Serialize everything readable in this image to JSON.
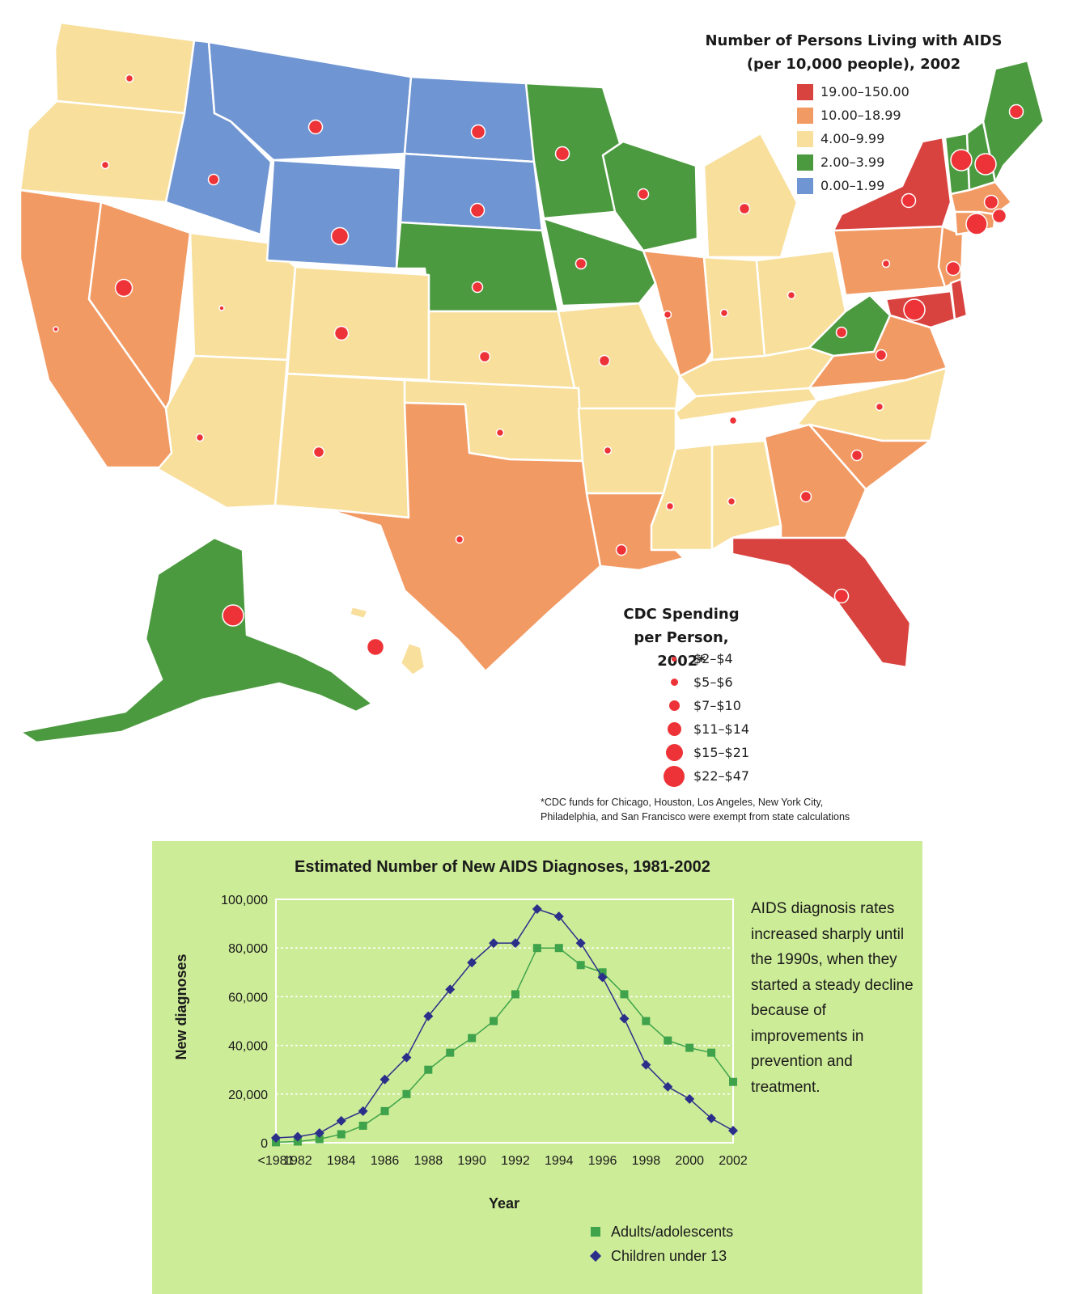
{
  "map": {
    "legend_title_line1": "Number of Persons Living with AIDS",
    "legend_title_line2": "(per 10,000 people), 2002",
    "categories": [
      {
        "label": "19.00–150.00",
        "color": "#d8433f"
      },
      {
        "label": "10.00–18.99",
        "color": "#f29a63"
      },
      {
        "label": "4.00–9.99",
        "color": "#f8df9c"
      },
      {
        "label": "2.00–3.99",
        "color": "#4c9a3f"
      },
      {
        "label": "0.00–1.99",
        "color": "#6f95d2"
      }
    ],
    "spending_title_line1": "CDC Spending",
    "spending_title_line2": "per Person, 2002*",
    "spending_levels": [
      {
        "label": "$2–$4",
        "level": 1
      },
      {
        "label": "$5–$6",
        "level": 2
      },
      {
        "label": "$7–$10",
        "level": 3
      },
      {
        "label": "$11–$14",
        "level": 4
      },
      {
        "label": "$15–$21",
        "level": 5
      },
      {
        "label": "$22–$47",
        "level": 6
      }
    ],
    "footnote_line1": "*CDC funds for Chicago, Houston, Los Angeles, New York City,",
    "footnote_line2": "Philadelphia, and San Francisco were exempt from state calculations",
    "bubble_color": "#ee3338"
  },
  "chart_data": {
    "type": "line",
    "title": "Estimated Number of New AIDS Diagnoses, 1981-2002",
    "xlabel": "Year",
    "ylabel": "New diagnoses",
    "x_tick_labels": [
      "<1981",
      "1982",
      "1984",
      "1986",
      "1988",
      "1990",
      "1992",
      "1994",
      "1996",
      "1998",
      "2000",
      "2002"
    ],
    "y_tick_labels": [
      "0",
      "20,000",
      "40,000",
      "60,000",
      "80,000",
      "100,000"
    ],
    "ylim": [
      0,
      100000
    ],
    "x": [
      "<1981",
      "1982",
      "1983",
      "1984",
      "1985",
      "1986",
      "1987",
      "1988",
      "1989",
      "1990",
      "1991",
      "1992",
      "1993",
      "1994",
      "1995",
      "1996",
      "1997",
      "1998",
      "1999",
      "2000",
      "2001",
      "2002"
    ],
    "series": [
      {
        "name": "Adults/adolescents",
        "marker": "square",
        "color": "#3ea34a",
        "values": [
          200,
          500,
          1500,
          3500,
          7000,
          13000,
          20000,
          30000,
          37000,
          43000,
          50000,
          61000,
          80000,
          80000,
          73000,
          70000,
          61000,
          50000,
          42000,
          39000,
          37000,
          25000
        ]
      },
      {
        "name": "Children under 13",
        "marker": "diamond",
        "color": "#2b2f8a",
        "values": [
          2000,
          2500,
          4000,
          9000,
          13000,
          26000,
          35000,
          52000,
          63000,
          74000,
          82000,
          82000,
          96000,
          93000,
          82000,
          68000,
          51000,
          32000,
          23000,
          18000,
          10000,
          5000
        ]
      }
    ],
    "grid": "horizontal",
    "legend": "bottom-right"
  },
  "chart_note": "AIDS diagnosis rates increased sharply until the 1990s, when they started a steady decline because of improvements in prevention and treatment."
}
